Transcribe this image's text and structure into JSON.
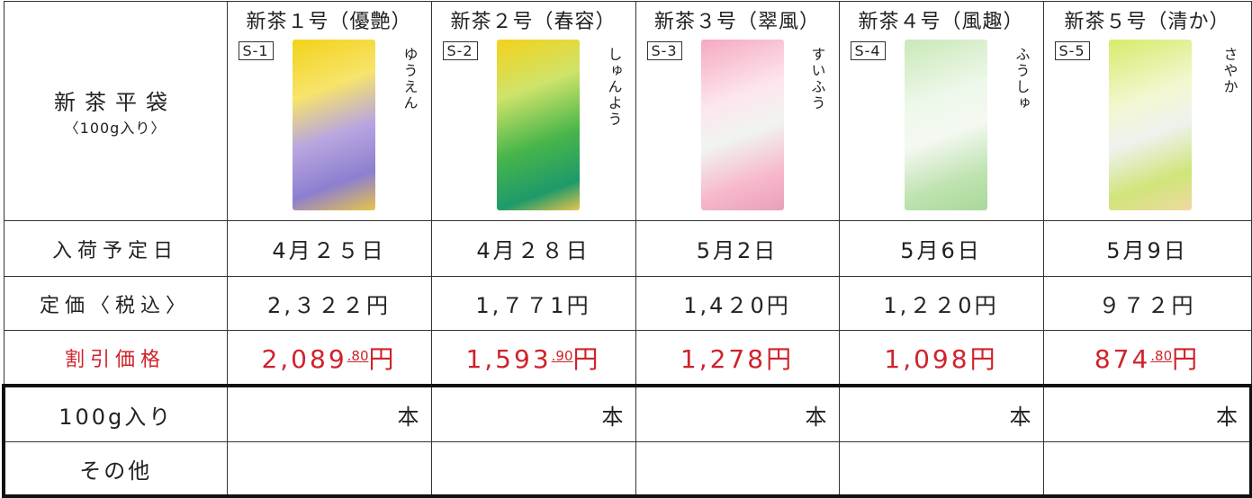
{
  "table": {
    "header": {
      "label": "新茶平袋",
      "sublabel": "〈100g入り〉"
    },
    "products": [
      {
        "name": "新茶１号（優艶）",
        "code": "S-1",
        "reading": "ゆうえん"
      },
      {
        "name": "新茶２号（春容）",
        "code": "S-2",
        "reading": "しゅんよう"
      },
      {
        "name": "新茶３号（翠風）",
        "code": "S-3",
        "reading": "すいふう"
      },
      {
        "name": "新茶４号（風趣）",
        "code": "S-4",
        "reading": "ふうしゅ"
      },
      {
        "name": "新茶５号（清か）",
        "code": "S-5",
        "reading": "さやか"
      }
    ],
    "rows": [
      {
        "label": "入荷予定日",
        "values": [
          "4月２５日",
          "4月２８日",
          "5月2日",
          "5月6日",
          "5月9日"
        ]
      },
      {
        "label": "定価〈税込〉",
        "values": [
          "2,３２２円",
          "1,７７1円",
          "1,4２0円",
          "1,２２0円",
          "９７２円"
        ]
      }
    ],
    "discount": {
      "label": "割引価格",
      "values": [
        {
          "integer": "2,089",
          "decimal": ".80",
          "unit": "円"
        },
        {
          "integer": "1,593",
          "decimal": ".90",
          "unit": "円"
        },
        {
          "integer": "1,278",
          "unit": "円"
        },
        {
          "integer": "1,098",
          "unit": "円"
        },
        {
          "integer": "874",
          "decimal": ".80",
          "unit": "円"
        }
      ]
    },
    "order_rows": [
      {
        "label": "100g入り",
        "values": [
          "本",
          "本",
          "本",
          "本",
          "本"
        ]
      },
      {
        "label": "その他"
      }
    ]
  }
}
